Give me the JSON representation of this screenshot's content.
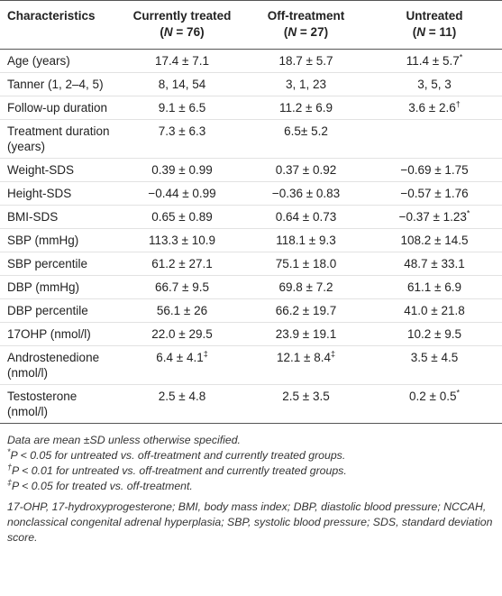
{
  "table": {
    "columns": [
      {
        "label": "Characteristics"
      },
      {
        "label": "Currently treated",
        "n": [
          "(",
          "N",
          " = 76)"
        ]
      },
      {
        "label": "Off-treatment",
        "n": [
          "(",
          "N",
          " = 27)"
        ]
      },
      {
        "label": "Untreated",
        "n": [
          "(",
          "N",
          " = 11)"
        ]
      }
    ],
    "rows": [
      [
        "Age (years)",
        "17.4 ± 7.1",
        "18.7 ± 5.7",
        {
          "text": "11.4 ± 5.7",
          "sup": "*"
        }
      ],
      [
        "Tanner (1, 2–4, 5)",
        "8, 14, 54",
        "3, 1, 23",
        "3, 5, 3"
      ],
      [
        "Follow-up duration",
        "9.1 ± 6.5",
        "11.2 ± 6.9",
        {
          "text": "3.6 ± 2.6",
          "sup": "†"
        }
      ],
      [
        "Treatment duration (years)",
        "7.3 ± 6.3",
        "6.5± 5.2",
        null
      ],
      [
        "Weight-SDS",
        "0.39 ± 0.99",
        "0.37 ± 0.92",
        "−0.69 ± 1.75"
      ],
      [
        "Height-SDS",
        "−0.44 ± 0.99",
        "−0.36 ± 0.83",
        "−0.57 ± 1.76"
      ],
      [
        "BMI-SDS",
        "0.65 ± 0.89",
        "0.64 ± 0.73",
        {
          "text": "−0.37 ± 1.23",
          "sup": "*"
        }
      ],
      [
        "SBP (mmHg)",
        "113.3 ± 10.9",
        "118.1 ± 9.3",
        "108.2 ± 14.5"
      ],
      [
        "SBP percentile",
        "61.2 ± 27.1",
        "75.1 ± 18.0",
        "48.7 ± 33.1"
      ],
      [
        "DBP (mmHg)",
        "66.7 ± 9.5",
        "69.8 ± 7.2",
        "61.1 ± 6.9"
      ],
      [
        "DBP percentile",
        "56.1 ± 26",
        "66.2 ± 19.7",
        "41.0 ± 21.8"
      ],
      [
        "17OHP (nmol/l)",
        "22.0 ± 29.5",
        "23.9 ± 19.1",
        "10.2 ± 9.5"
      ],
      [
        "Androstenedione (nmol/l)",
        {
          "text": "6.4 ± 4.1",
          "sup": "‡"
        },
        {
          "text": "12.1 ± 8.4",
          "sup": "‡"
        },
        "3.5 ± 4.5"
      ],
      [
        "Testosterone (nmol/l)",
        "2.5 ± 4.8",
        "2.5 ± 3.5",
        {
          "text": "0.2 ± 0.5",
          "sup": "*"
        }
      ]
    ]
  },
  "notes": {
    "summary": "Data are mean ±SD unless otherwise specified.",
    "footnotes": [
      {
        "sup": "*",
        "text": "P < 0.05 for untreated vs. off-treatment and currently treated groups."
      },
      {
        "sup": "†",
        "text": "P < 0.01 for untreated vs. off-treatment and currently treated groups."
      },
      {
        "sup": "‡",
        "text": "P < 0.05 for treated vs. off-treatment."
      }
    ],
    "abbreviations": "17-OHP, 17-hydroxyprogesterone; BMI, body mass index; DBP, diastolic blood pressure; NCCAH, nonclassical congenital adrenal hyperplasia; SBP, systolic blood pressure; SDS, standard deviation score."
  }
}
